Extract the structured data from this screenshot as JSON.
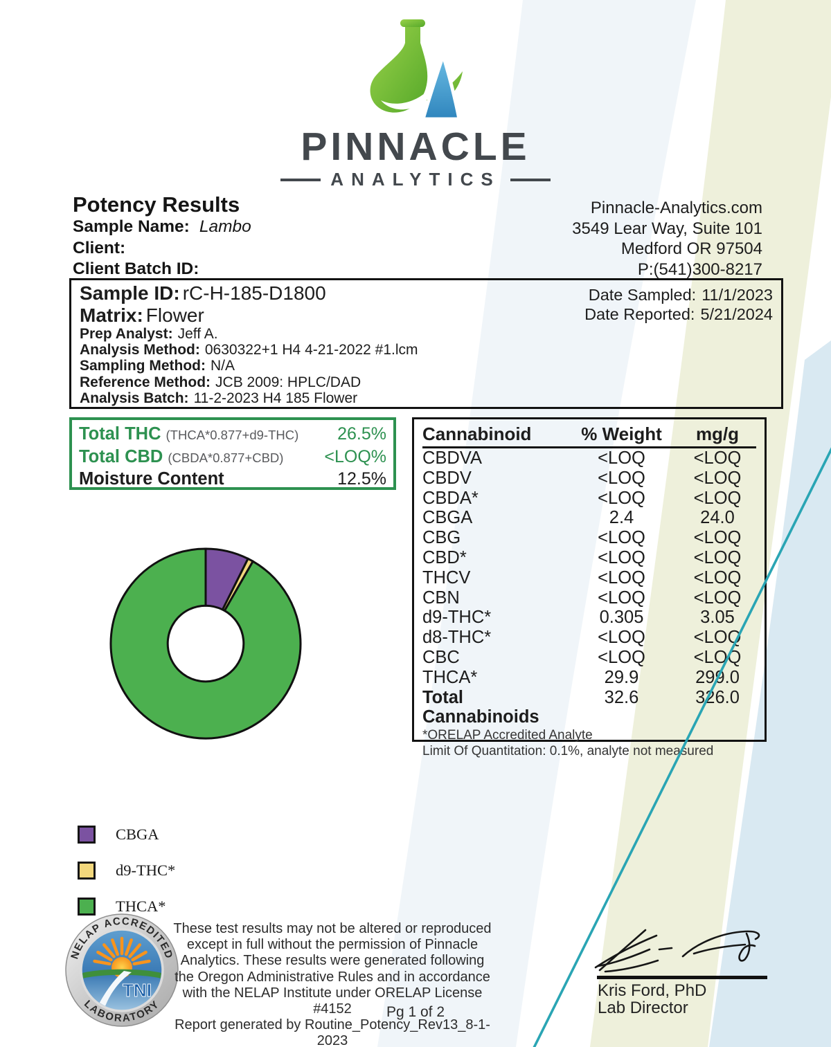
{
  "logo": {
    "brand": "PINNACLE",
    "sub": "ANALYTICS"
  },
  "header": {
    "title": "Potency Results",
    "sample_name_label": "Sample Name:",
    "sample_name": "Lambo",
    "client_label": "Client:",
    "client_batch_label": "Client Batch ID:",
    "contact": [
      "Pinnacle-Analytics.com",
      "3549 Lear Way, Suite 101",
      "Medford OR 97504",
      "P:(541)300-8217"
    ]
  },
  "sample_info": {
    "rows": [
      {
        "label": "Sample ID:",
        "value": "rC-H-185-D1800",
        "size": "xl"
      },
      {
        "label": "Matrix:",
        "value": "Flower",
        "size": "xl"
      },
      {
        "label": "Prep Analyst:",
        "value": "Jeff A."
      },
      {
        "label": "Analysis Method:",
        "value": "0630322+1 H4 4-21-2022 #1.lcm"
      },
      {
        "label": "Sampling Method:",
        "value": "N/A"
      },
      {
        "label": "Reference Method:",
        "value": "JCB 2009: HPLC/DAD"
      },
      {
        "label": "Analysis Batch:",
        "value": "11-2-2023 H4 185 Flower"
      }
    ],
    "date_sampled_label": "Date Sampled:",
    "date_sampled": "11/1/2023",
    "date_reported_label": "Date Reported:",
    "date_reported": "5/21/2024"
  },
  "totals": {
    "rows": [
      {
        "label": "Total THC",
        "formula": "(THCA*0.877+d9-THC)",
        "value": "26.5%"
      },
      {
        "label": "Total CBD",
        "formula": "(CBDA*0.877+CBD)",
        "value": "<LOQ%"
      },
      {
        "label": "Moisture Content",
        "formula": "",
        "value": "12.5%"
      }
    ]
  },
  "table": {
    "headers": [
      "Cannabinoid",
      "% Weight",
      "mg/g"
    ],
    "rows": [
      {
        "name": "CBDVA",
        "weight": "<LOQ",
        "mgg": "<LOQ"
      },
      {
        "name": "CBDV",
        "weight": "<LOQ",
        "mgg": "<LOQ"
      },
      {
        "name": "CBDA*",
        "weight": "<LOQ",
        "mgg": "<LOQ"
      },
      {
        "name": "CBGA",
        "weight": "2.4",
        "mgg": "24.0"
      },
      {
        "name": "CBG",
        "weight": "<LOQ",
        "mgg": "<LOQ"
      },
      {
        "name": "CBD*",
        "weight": "<LOQ",
        "mgg": "<LOQ"
      },
      {
        "name": "THCV",
        "weight": "<LOQ",
        "mgg": "<LOQ"
      },
      {
        "name": "CBN",
        "weight": "<LOQ",
        "mgg": "<LOQ"
      },
      {
        "name": "d9-THC*",
        "weight": "0.305",
        "mgg": "3.05"
      },
      {
        "name": "d8-THC*",
        "weight": "<LOQ",
        "mgg": "<LOQ"
      },
      {
        "name": "CBC",
        "weight": "<LOQ",
        "mgg": "<LOQ"
      },
      {
        "name": "THCA*",
        "weight": "29.9",
        "mgg": "299.0"
      },
      {
        "name": "Total Cannabinoids",
        "weight": "32.6",
        "mgg": "326.0",
        "bold": true
      }
    ],
    "footnotes": [
      "*ORELAP Accredited Analyte",
      "Limit Of Quantitation: 0.1%, analyte not measured"
    ]
  },
  "chart_data": {
    "type": "pie",
    "style": "donut",
    "categories": [
      "CBGA",
      "d9-THC*",
      "THCA*"
    ],
    "values": [
      2.4,
      0.305,
      29.9
    ],
    "units": "% weight",
    "colors": [
      "#7b52a1",
      "#f2d77c",
      "#4cb04f"
    ],
    "start_angle_deg": 0,
    "direction": "clockwise",
    "inner_radius_ratio": 0.4,
    "legend_position": "bottom-left"
  },
  "footer": {
    "seal": {
      "top_text": "NELAP ACCREDITED",
      "bottom_text": "LABORATORY",
      "center_text": "TNI"
    },
    "disclaimer_lines": [
      "These test results may not be altered or reproduced",
      "except in full without the permission of Pinnacle",
      "Analytics. These results were generated following",
      "the Oregon Administrative Rules and in accordance",
      "with the NELAP Institute under ORELAP License #4152",
      "Report generated by Routine_Potency_Rev13_8-1-2023"
    ],
    "page_label": "Pg 1 of 2",
    "signature": {
      "name": "Kris Ford, PhD",
      "title": "Lab Director"
    }
  },
  "colors": {
    "accent_green": "#2d9150",
    "teal_line": "#2aa5b4",
    "swoosh_green": "#eef0db",
    "swoosh_blue": "#d9e9f2",
    "swoosh_gray": "#f0f5f9"
  }
}
